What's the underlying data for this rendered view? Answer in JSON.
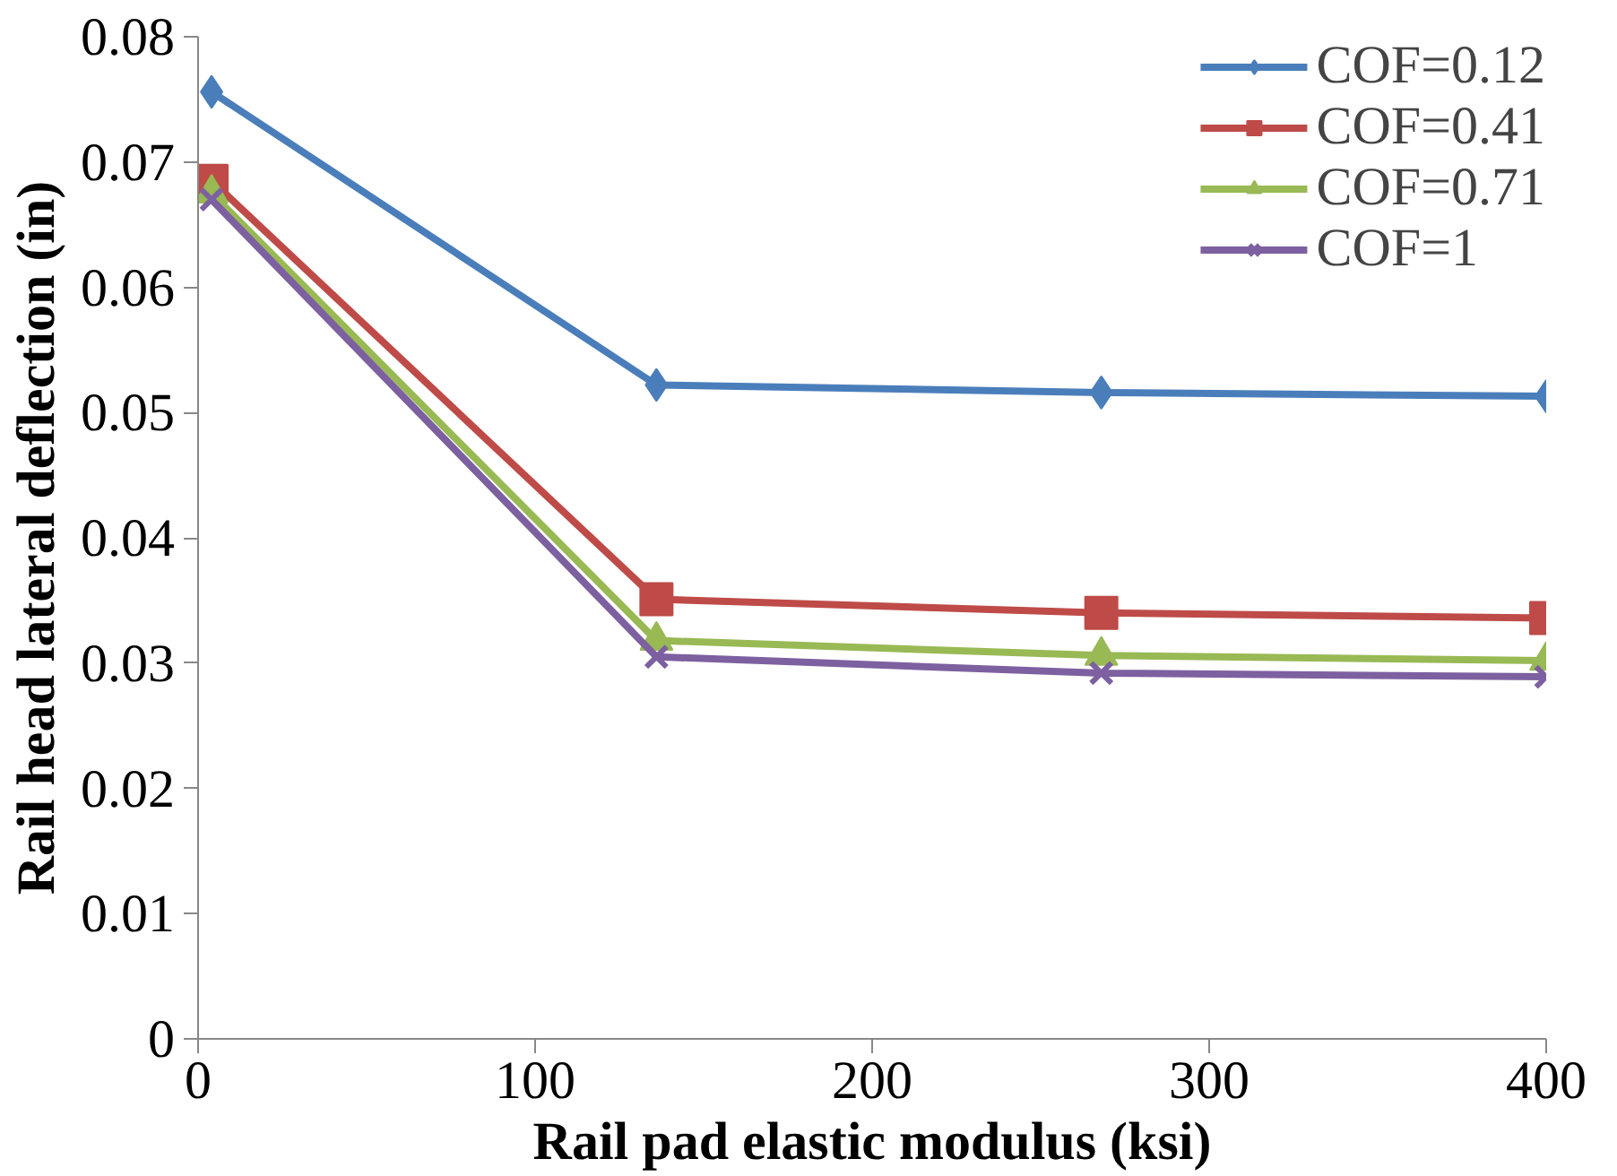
{
  "chart_data": {
    "type": "line",
    "xlabel": "Rail pad elastic modulus (ksi)",
    "ylabel": "Rail head lateral deflection (in)",
    "x": [
      4,
      136,
      268,
      400
    ],
    "series": [
      {
        "name": "COF=0.12",
        "color": "#4a7ebb",
        "marker": "diamond",
        "values": [
          0.0756,
          0.0522,
          0.0516,
          0.0513
        ]
      },
      {
        "name": "COF=0.41",
        "color": "#be4b48",
        "marker": "square",
        "values": [
          0.0685,
          0.0351,
          0.034,
          0.0336
        ]
      },
      {
        "name": "COF=0.71",
        "color": "#98b954",
        "marker": "triangle",
        "values": [
          0.0675,
          0.0318,
          0.0306,
          0.0302
        ]
      },
      {
        "name": "COF=1",
        "color": "#7d60a0",
        "marker": "cross",
        "values": [
          0.067,
          0.0305,
          0.0292,
          0.0289
        ]
      }
    ],
    "xlim": [
      0,
      400
    ],
    "xticks": [
      0,
      100,
      200,
      300,
      400
    ],
    "ylim": [
      0,
      0.08
    ],
    "yticks": [
      0,
      0.01,
      0.02,
      0.03,
      0.04,
      0.05,
      0.06,
      0.07,
      0.08
    ],
    "grid": false,
    "legend": "top right",
    "line_style": "solid"
  }
}
